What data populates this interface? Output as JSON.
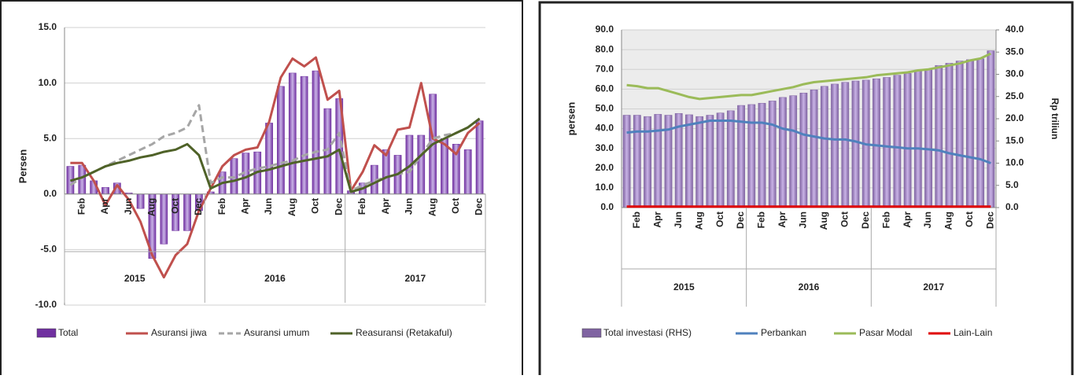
{
  "chart_data": [
    {
      "type": "combo",
      "y_label": "Persen",
      "categories": [
        null,
        "Feb",
        null,
        "Apr",
        null,
        "Jun",
        null,
        "Aug",
        null,
        "Oct",
        null,
        "Dec",
        null,
        "Feb",
        null,
        "Apr",
        null,
        "Jun",
        null,
        "Aug",
        null,
        "Oct",
        null,
        "Dec",
        null,
        "Feb",
        null,
        "Apr",
        null,
        "Jun",
        null,
        "Aug",
        null,
        "Oct",
        null,
        "Dec"
      ],
      "years": [
        "2015",
        "2016",
        "2017"
      ],
      "ylim": [
        -10,
        15
      ],
      "yticks": [
        {
          "value": -10,
          "label": "-10.0"
        },
        {
          "value": -5,
          "label": "-5.0"
        },
        {
          "value": 0,
          "label": "0.0"
        },
        {
          "value": 5,
          "label": "5.0"
        },
        {
          "value": 10,
          "label": "10.0"
        },
        {
          "value": 15,
          "label": "15.0"
        }
      ],
      "grid": true,
      "legend": "bottom",
      "series": [
        {
          "name": "Total",
          "kind": "bar",
          "color": "#7030a0",
          "values": [
            2.5,
            2.6,
            1.2,
            0.6,
            1.0,
            0.1,
            -1.3,
            -5.8,
            -4.5,
            -3.3,
            -3.3,
            -1.5,
            0.2,
            2.0,
            3.2,
            3.7,
            3.8,
            6.4,
            9.7,
            10.9,
            10.6,
            11.1,
            7.7,
            8.6,
            0.3,
            1.0,
            2.6,
            4.0,
            3.5,
            5.3,
            5.3,
            9.0,
            5.0,
            4.5,
            4.0,
            6.6
          ]
        },
        {
          "name": "Asuransi jiwa",
          "kind": "line",
          "color": "#c0504d",
          "values": [
            2.8,
            2.8,
            1.2,
            -1.0,
            0.8,
            -0.5,
            -2.5,
            -5.5,
            -7.5,
            -5.5,
            -4.5,
            -1.5,
            0.5,
            2.5,
            3.5,
            4.0,
            4.2,
            6.5,
            10.5,
            12.2,
            11.5,
            12.3,
            8.5,
            9.3,
            0.3,
            2.0,
            4.4,
            3.5,
            5.8,
            6.0,
            10.0,
            5.0,
            4.5,
            3.6,
            5.5,
            6.4
          ]
        },
        {
          "name": "Asuransi umum",
          "kind": "line",
          "dash": true,
          "color": "#a6a6a6",
          "values": [
            0.8,
            1.5,
            2.0,
            2.5,
            3.0,
            3.5,
            4.0,
            4.5,
            5.2,
            5.5,
            6.0,
            8.0,
            1.0,
            1.5,
            1.5,
            2.0,
            2.3,
            2.5,
            2.8,
            3.0,
            3.5,
            3.8,
            4.0,
            5.5,
            0.3,
            0.8,
            1.2,
            1.5,
            1.8,
            2.0,
            3.5,
            5.0,
            5.3,
            5.5,
            6.0,
            6.8
          ]
        },
        {
          "name": "Reasuransi (Retakaful)",
          "kind": "line",
          "color": "#4f6228",
          "values": [
            1.2,
            1.5,
            2.0,
            2.5,
            2.8,
            3.0,
            3.3,
            3.5,
            3.8,
            4.0,
            4.5,
            3.5,
            0.5,
            1.0,
            1.2,
            1.5,
            2.0,
            2.2,
            2.5,
            2.8,
            3.0,
            3.2,
            3.4,
            4.0,
            0.2,
            0.5,
            1.0,
            1.5,
            1.8,
            2.5,
            3.5,
            4.5,
            5.0,
            5.5,
            6.0,
            6.8
          ]
        }
      ]
    },
    {
      "type": "combo",
      "y_label": "persen",
      "y2_label": "Rp triliun",
      "categories": [
        null,
        "Feb",
        null,
        "Apr",
        null,
        "Jun",
        null,
        "Aug",
        null,
        "Oct",
        null,
        "Dec",
        null,
        "Feb",
        null,
        "Apr",
        null,
        "Jun",
        null,
        "Aug",
        null,
        "Oct",
        null,
        "Dec",
        null,
        "Feb",
        null,
        "Apr",
        null,
        "Jun",
        null,
        "Aug",
        null,
        "Oct",
        null,
        "Dec"
      ],
      "years": [
        "2015",
        "2016",
        "2017"
      ],
      "ylim": [
        0,
        90
      ],
      "yticks": [
        {
          "value": 0,
          "label": "0.0"
        },
        {
          "value": 10,
          "label": "10.0"
        },
        {
          "value": 20,
          "label": "20.0"
        },
        {
          "value": 30,
          "label": "30.0"
        },
        {
          "value": 40,
          "label": "40.0"
        },
        {
          "value": 50,
          "label": "50.0"
        },
        {
          "value": 60,
          "label": "60.0"
        },
        {
          "value": 70,
          "label": "70.0"
        },
        {
          "value": 80,
          "label": "80.0"
        },
        {
          "value": 90,
          "label": "90.0"
        }
      ],
      "y2lim": [
        0,
        40
      ],
      "y2ticks": [
        {
          "value": 0,
          "label": "0.0"
        },
        {
          "value": 5,
          "label": "5.0"
        },
        {
          "value": 10,
          "label": "10.0"
        },
        {
          "value": 15,
          "label": "15.0"
        },
        {
          "value": 20,
          "label": "20.0"
        },
        {
          "value": 25,
          "label": "25.0"
        },
        {
          "value": 30,
          "label": "30.0"
        },
        {
          "value": 35,
          "label": "35.0"
        },
        {
          "value": 40,
          "label": "40.0"
        }
      ],
      "grid": true,
      "legend": "bottom",
      "series": [
        {
          "name": "Total investasi (RHS)",
          "kind": "bar",
          "axis": "y2",
          "color": "#8064a2",
          "values": [
            20.8,
            20.8,
            20.5,
            21.0,
            20.8,
            21.2,
            20.9,
            20.5,
            20.8,
            21.3,
            21.8,
            23.0,
            23.2,
            23.5,
            24.0,
            24.8,
            25.2,
            25.8,
            26.5,
            27.3,
            27.8,
            28.2,
            28.5,
            28.7,
            29.0,
            29.3,
            29.8,
            30.2,
            30.8,
            31.2,
            32.0,
            32.5,
            33.0,
            33.3,
            33.5,
            35.3
          ]
        },
        {
          "name": "Perbankan",
          "kind": "line",
          "color": "#4f81bd",
          "values": [
            38,
            38.5,
            38.5,
            39,
            39.5,
            41,
            42,
            43,
            44,
            44,
            44,
            43.5,
            43,
            43,
            42,
            40,
            39,
            37,
            36,
            35,
            34.5,
            34.5,
            33.5,
            32,
            31.5,
            31,
            30.5,
            30,
            30,
            29.5,
            29,
            27.5,
            26.5,
            25.5,
            24.5,
            22.5
          ]
        },
        {
          "name": "Pasar Modal",
          "kind": "line",
          "color": "#9bbb59",
          "values": [
            62,
            61.5,
            60.5,
            60.5,
            59,
            57.5,
            56,
            55,
            55.5,
            56,
            56.5,
            57,
            57,
            58,
            59,
            60,
            61,
            62.5,
            63.5,
            64,
            64.5,
            65,
            65.5,
            66,
            67,
            67.5,
            68,
            68.5,
            69.5,
            70,
            71,
            72,
            73,
            74.5,
            75.5,
            78
          ]
        },
        {
          "name": "Lain-Lain",
          "kind": "line",
          "color": "#e00000",
          "values": [
            0.5,
            0.5,
            0.5,
            0.5,
            0.5,
            0.5,
            0.5,
            0.5,
            0.5,
            0.5,
            0.5,
            0.5,
            0.5,
            0.5,
            0.5,
            0.5,
            0.5,
            0.5,
            0.5,
            0.5,
            0.5,
            0.5,
            0.5,
            0.5,
            0.5,
            0.5,
            0.5,
            0.5,
            0.5,
            0.5,
            0.5,
            0.5,
            0.5,
            0.5,
            0.5,
            0.5
          ]
        }
      ]
    }
  ]
}
